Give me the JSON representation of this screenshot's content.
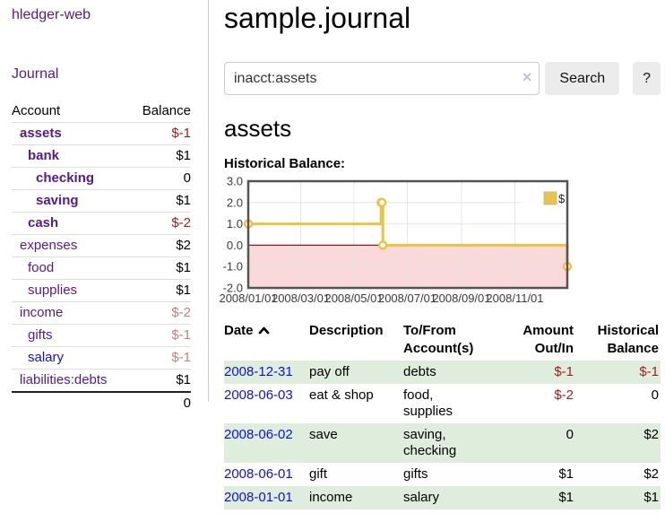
{
  "app": {
    "brand": "hledger-web",
    "nav_journal": "Journal"
  },
  "colors": {
    "link_visited": "#551a8b",
    "link_new": "#0f0fdd",
    "negative_strong": "#a31d1d",
    "negative_faded": "#c08080",
    "row_stripe_green": "#dfeedc",
    "series_gold": "#edc240",
    "chart_border": "#545454",
    "grid_line": "#e4e4e4",
    "negative_region": "#f9d9d9",
    "zero_line": "#8b1a1a"
  },
  "sidebar": {
    "accounts_header": {
      "account": "Account",
      "balance": "Balance"
    },
    "accounts": [
      {
        "name": "assets",
        "indent": 0,
        "bold": true,
        "balance": "$-1",
        "neg": "strong",
        "link": "visited"
      },
      {
        "name": "bank",
        "indent": 1,
        "bold": true,
        "balance": "$1",
        "neg": null,
        "link": "visited"
      },
      {
        "name": "checking",
        "indent": 2,
        "bold": true,
        "balance": "0",
        "neg": null,
        "link": "visited"
      },
      {
        "name": "saving",
        "indent": 2,
        "bold": true,
        "balance": "$1",
        "neg": null,
        "link": "visited"
      },
      {
        "name": "cash",
        "indent": 1,
        "bold": true,
        "balance": "$-2",
        "neg": "strong",
        "link": "visited"
      },
      {
        "name": "expenses",
        "indent": 0,
        "bold": false,
        "balance": "$2",
        "neg": null,
        "link": "visited"
      },
      {
        "name": "food",
        "indent": 1,
        "bold": false,
        "balance": "$1",
        "neg": null,
        "link": "visited"
      },
      {
        "name": "supplies",
        "indent": 1,
        "bold": false,
        "balance": "$1",
        "neg": null,
        "link": "visited"
      },
      {
        "name": "income",
        "indent": 0,
        "bold": false,
        "balance": "$-2",
        "neg": "faded",
        "link": "visited"
      },
      {
        "name": "gifts",
        "indent": 1,
        "bold": false,
        "balance": "$-1",
        "neg": "faded",
        "link": "visited"
      },
      {
        "name": "salary",
        "indent": 1,
        "bold": false,
        "balance": "$-1",
        "neg": "faded",
        "link": "new"
      },
      {
        "name": "liabilities:debts",
        "indent": 0,
        "bold": false,
        "balance": "$1",
        "neg": null,
        "link": "visited"
      }
    ],
    "total": "0"
  },
  "header": {
    "title": "sample.journal"
  },
  "search": {
    "value": "inacct:assets",
    "clear_icon": "×",
    "button_label": "Search",
    "help_label": "?"
  },
  "account_page": {
    "heading": "assets",
    "chart_label": "Historical Balance:"
  },
  "chart_data": {
    "type": "line",
    "step": true,
    "title": "Historical Balance of assets",
    "series": [
      {
        "name": "$",
        "color": "#edc240",
        "points": [
          [
            "2008-01-01",
            1
          ],
          [
            "2008-06-01",
            2
          ],
          [
            "2008-06-02",
            2
          ],
          [
            "2008-06-03",
            0
          ],
          [
            "2008-12-31",
            -1
          ]
        ]
      }
    ],
    "x_ticks": [
      "2008/01/01",
      "2008/03/01",
      "2008/05/01",
      "2008/07/01",
      "2008/09/01",
      "2008/11/01"
    ],
    "y_ticks": [
      "3.0",
      "2.0",
      "1.0",
      "0.0",
      "-1.0",
      "-2.0"
    ],
    "ylim": [
      -2,
      3
    ],
    "x_start_date": "2008-01-01",
    "x_end_date": "2008-12-31",
    "grid": true,
    "legend": {
      "label": "$",
      "position": "top-right"
    }
  },
  "register": {
    "columns": {
      "date": "Date",
      "description": "Description",
      "tofrom_line1": "To/From",
      "tofrom_line2": "Account(s)",
      "amount_line1": "Amount",
      "amount_line2": "Out/In",
      "balance_line1": "Historical",
      "balance_line2": "Balance"
    },
    "rows": [
      {
        "date": "2008-12-31",
        "description": "pay off",
        "accounts": "debts",
        "amount": "$-1",
        "amount_neg": true,
        "balance": "$-1",
        "balance_neg": true
      },
      {
        "date": "2008-06-03",
        "description": "eat & shop",
        "accounts": "food, supplies",
        "amount": "$-2",
        "amount_neg": true,
        "balance": "0",
        "balance_neg": false
      },
      {
        "date": "2008-06-02",
        "description": "save",
        "accounts": "saving, checking",
        "amount": "0",
        "amount_neg": false,
        "balance": "$2",
        "balance_neg": false
      },
      {
        "date": "2008-06-01",
        "description": "gift",
        "accounts": "gifts",
        "amount": "$1",
        "amount_neg": false,
        "balance": "$2",
        "balance_neg": false
      },
      {
        "date": "2008-01-01",
        "description": "income",
        "accounts": "salary",
        "amount": "$1",
        "amount_neg": false,
        "balance": "$1",
        "balance_neg": false
      }
    ]
  }
}
